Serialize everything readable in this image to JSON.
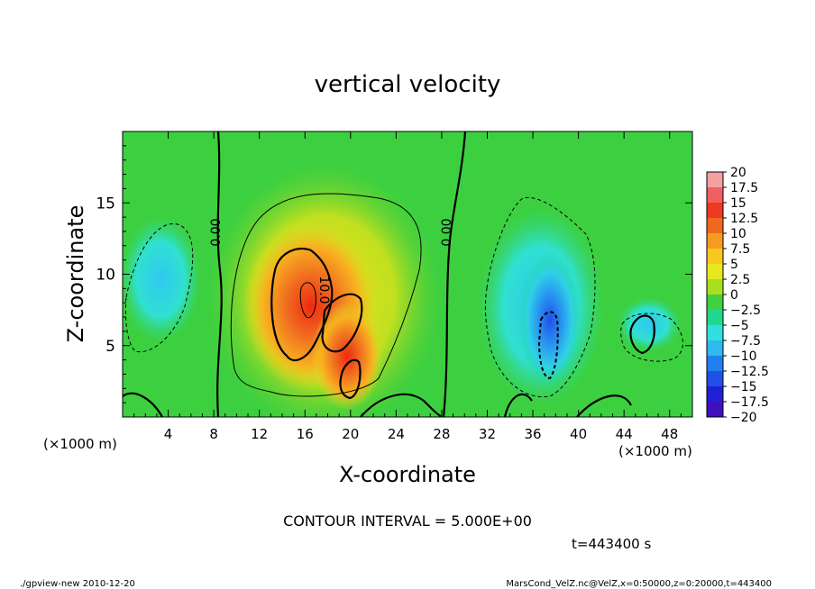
{
  "chart_data": {
    "type": "heatmap",
    "title": "vertical velocity",
    "xlabel": "X-coordinate",
    "ylabel": "Z-coordinate",
    "x_unit_left": "(×1000 m)",
    "x_unit_right": "(×1000 m)",
    "xlim": [
      0,
      50
    ],
    "ylim": [
      0,
      20
    ],
    "x_ticks": [
      4,
      8,
      12,
      16,
      20,
      24,
      28,
      32,
      36,
      40,
      44,
      48
    ],
    "y_ticks": [
      5,
      10,
      15
    ],
    "colorbar": {
      "labels": [
        "20",
        "17.5",
        "15",
        "12.5",
        "10",
        "7.5",
        "5",
        "2.5",
        "0",
        "−2.5",
        "−5",
        "−7.5",
        "−10",
        "−12.5",
        "−15",
        "−17.5",
        "−20"
      ],
      "colors": [
        "#f5a0a0",
        "#f06060",
        "#ee3a20",
        "#f06820",
        "#f89a20",
        "#f8c820",
        "#e8e820",
        "#a8e020",
        "#40d040",
        "#20d890",
        "#30e0e0",
        "#30b8f0",
        "#2080f0",
        "#2050e8",
        "#2020d8",
        "#4010c0",
        "#7020b0"
      ]
    },
    "contour_labels": [
      "0.00",
      "0.00",
      "10.0"
    ],
    "features": [
      {
        "name": "updraft core",
        "x": 16,
        "z": 8,
        "w": 14
      },
      {
        "name": "updraft secondary",
        "x": 19.5,
        "z": 3,
        "w": 12
      },
      {
        "name": "downdraft",
        "x": 37,
        "z": 6,
        "w": -12
      },
      {
        "name": "weak downdraft",
        "x": 4,
        "z": 9,
        "w": -5
      },
      {
        "name": "weak downdraft",
        "x": 44.5,
        "z": 6,
        "w": -4
      }
    ],
    "grid": false
  },
  "annotations": {
    "contour_interval": "CONTOUR INTERVAL = 5.000E+00",
    "time": "t=443400  s",
    "footer_left": "./gpview-new  2010-12-20",
    "footer_right": "MarsCond_VelZ.nc@VelZ,x=0:50000,z=0:20000,t=443400"
  }
}
